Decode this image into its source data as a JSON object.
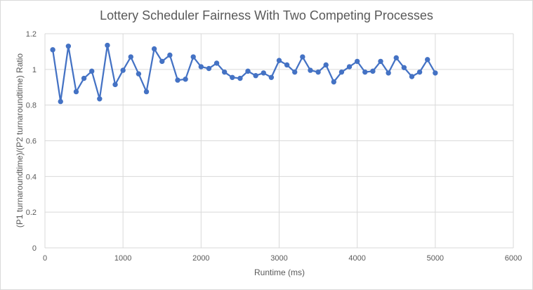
{
  "chart_data": {
    "type": "line",
    "title": "Lottery Scheduler Fairness With Two Competing Processes",
    "xlabel": "Runtime (ms)",
    "ylabel": "(P1 turnaroundtime)/(P2 turnaroundtime) Ratio",
    "xlim": [
      0,
      6000
    ],
    "ylim": [
      0,
      1.2
    ],
    "x_ticks": [
      "0",
      "1000",
      "2000",
      "3000",
      "4000",
      "5000",
      "6000"
    ],
    "y_ticks": [
      "0",
      "0.2",
      "0.4",
      "0.6",
      "0.8",
      "1",
      "1.2"
    ],
    "x_tick_values": [
      0,
      1000,
      2000,
      3000,
      4000,
      5000,
      6000
    ],
    "y_tick_values": [
      0,
      0.2,
      0.4,
      0.6,
      0.8,
      1.0,
      1.2
    ],
    "grid": "horizontal and vertical",
    "legend": "none",
    "series": [
      {
        "color": "#4472c4",
        "marker": "circle",
        "x": [
          100,
          200,
          300,
          400,
          500,
          600,
          700,
          800,
          900,
          1000,
          1100,
          1200,
          1300,
          1400,
          1500,
          1600,
          1700,
          1800,
          1900,
          2000,
          2100,
          2200,
          2300,
          2400,
          2500,
          2600,
          2700,
          2800,
          2900,
          3000,
          3100,
          3200,
          3300,
          3400,
          3500,
          3600,
          3700,
          3800,
          3900,
          4000,
          4100,
          4200,
          4300,
          4400,
          4500,
          4600,
          4700,
          4800,
          4900,
          5000
        ],
        "y": [
          1.11,
          0.82,
          1.13,
          0.875,
          0.95,
          0.99,
          0.835,
          1.135,
          0.915,
          0.995,
          1.07,
          0.975,
          0.875,
          1.115,
          1.045,
          1.08,
          0.94,
          0.945,
          1.07,
          1.015,
          1.005,
          1.035,
          0.985,
          0.955,
          0.95,
          0.99,
          0.965,
          0.98,
          0.955,
          1.05,
          1.025,
          0.985,
          1.07,
          0.995,
          0.985,
          1.025,
          0.93,
          0.985,
          1.015,
          1.045,
          0.985,
          0.99,
          1.045,
          0.98,
          1.065,
          1.01,
          0.96,
          0.985,
          1.055,
          0.98
        ]
      }
    ]
  }
}
